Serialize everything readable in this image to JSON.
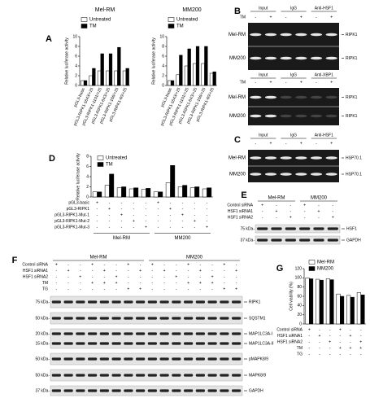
{
  "chart_data": [
    {
      "type": "bar",
      "panel": "A",
      "title": "Mel-RM",
      "ylabel": "Relative luciferase activity",
      "categories": [
        "pGL3-basic",
        "pGL3-RIPK1-1643/+25",
        "pGL3-RIPK1-1101/+25",
        "pGL3-RIPK1-643/+25",
        "pGL3-RIPK1-166/+25",
        "pGL3-RIPK1-60/+25"
      ],
      "series": [
        {
          "name": "Untreated",
          "color": "#ffffff",
          "values": [
            1,
            2,
            3,
            3,
            3,
            3
          ]
        },
        {
          "name": "TM",
          "color": "#000000",
          "values": [
            1,
            3.5,
            6.5,
            6.5,
            7.8,
            3.5
          ]
        }
      ],
      "ylim": [
        0,
        10
      ],
      "yticks": [
        0,
        2,
        4,
        6,
        8,
        10
      ]
    },
    {
      "type": "bar",
      "title": "MM200",
      "ylabel": "Relative luciferase activity",
      "categories": [
        "pGL3-basic",
        "pGL3-RIPK1-1643/+25",
        "pGL3-RIPK1-1101/+25",
        "pGL3-RIPK1-643/+25",
        "pGL3-RIPK1-166/+25",
        "pGL3-RIPK1-60/+25"
      ],
      "series": [
        {
          "name": "Untreated",
          "color": "#ffffff",
          "values": [
            1,
            2.2,
            4,
            4.5,
            4.5,
            2.5
          ]
        },
        {
          "name": "TM",
          "color": "#000000",
          "values": [
            1,
            6.2,
            7.5,
            8,
            8,
            2.8
          ]
        }
      ],
      "ylim": [
        0,
        10
      ],
      "yticks": [
        0,
        2,
        4,
        6,
        8,
        10
      ]
    },
    {
      "type": "bar",
      "panel": "D",
      "ylabel": "Relative luciferase activity",
      "categories": [
        null,
        null,
        null,
        null,
        null,
        null,
        null,
        null,
        null,
        null
      ],
      "series": [
        {
          "name": "Untreated",
          "color": "#ffffff",
          "values": [
            1,
            2.3,
            1.8,
            1.6,
            1.5,
            1,
            2.8,
            2,
            1.8,
            1.6
          ]
        },
        {
          "name": "TM",
          "color": "#000000",
          "values": [
            1,
            4.5,
            2,
            1.8,
            1.7,
            1,
            6.2,
            2.3,
            2,
            1.8
          ]
        }
      ],
      "ylim": [
        0,
        8
      ],
      "yticks": [
        0,
        2,
        4,
        6,
        8
      ],
      "groups": [
        "Mel-RM",
        "MM200"
      ],
      "conditions": [
        {
          "label": "pGL3-basic",
          "signs": [
            "+",
            "-",
            "-",
            "-",
            "-",
            "+",
            "-",
            "-",
            "-",
            "-"
          ]
        },
        {
          "label": "pGL3-RIPK1",
          "signs": [
            "-",
            "+",
            "-",
            "-",
            "-",
            "-",
            "+",
            "-",
            "-",
            "-"
          ]
        },
        {
          "label": "pGL3-RIPK1-Mut-1",
          "signs": [
            "-",
            "-",
            "+",
            "-",
            "-",
            "-",
            "-",
            "+",
            "-",
            "-"
          ]
        },
        {
          "label": "pGL3-RIPK1-Mut-2",
          "signs": [
            "-",
            "-",
            "-",
            "+",
            "-",
            "-",
            "-",
            "-",
            "+",
            "-"
          ]
        },
        {
          "label": "pGL3-RIPK1-Mut-3",
          "signs": [
            "-",
            "-",
            "-",
            "-",
            "+",
            "-",
            "-",
            "-",
            "-",
            "+"
          ]
        }
      ]
    },
    {
      "type": "bar",
      "panel": "G",
      "ylabel": "Cell viability (%)",
      "categories": [
        null,
        null,
        null,
        null,
        null,
        null
      ],
      "series": [
        {
          "name": "Mel-RM",
          "color": "#ffffff",
          "values": [
            100,
            97,
            98,
            65,
            62,
            68
          ]
        },
        {
          "name": "MM200",
          "color": "#000000",
          "values": [
            98,
            95,
            96,
            60,
            58,
            63
          ]
        }
      ],
      "ylim": [
        0,
        120
      ],
      "yticks": [
        0,
        20,
        40,
        60,
        80,
        100,
        120
      ],
      "conditions": [
        {
          "label": "Control siRNA",
          "signs": [
            "+",
            "-",
            "-",
            "+",
            "-",
            "-"
          ]
        },
        {
          "label": "HSF1 siRNA1",
          "signs": [
            "-",
            "+",
            "-",
            "-",
            "+",
            "-"
          ]
        },
        {
          "label": "HSF1 siRNA2",
          "signs": [
            "-",
            "-",
            "+",
            "-",
            "-",
            "+"
          ]
        },
        {
          "label": "TM",
          "signs": [
            "-",
            "-",
            "-",
            "+",
            "+",
            "+"
          ]
        },
        {
          "label": "TG",
          "signs": [
            "-",
            "-",
            "-",
            "-",
            "-",
            "-"
          ]
        }
      ]
    }
  ],
  "chips": [
    {
      "panel": "B",
      "columns": [
        "Input",
        "IgG",
        "Anti-HSF1"
      ],
      "treatment": "TM",
      "signs": [
        "-",
        "+",
        "-",
        "+",
        "-",
        "+"
      ],
      "rows": [
        "Mel-RM",
        "MM200"
      ],
      "band": "RIPK1"
    },
    {
      "columns": [
        "Input",
        "IgG",
        "Anti-XBP1"
      ],
      "treatment": "TM",
      "signs": [
        "-",
        "+",
        "-",
        "+",
        "-",
        "+"
      ],
      "rows": [
        "Mel-RM",
        "MM200"
      ],
      "band": "RIPK1"
    },
    {
      "panel": "C",
      "columns": [
        "Input",
        "IgG",
        "Anti-HSF1"
      ],
      "signs": [
        "-",
        "+",
        "-",
        "+",
        "-",
        "+"
      ],
      "rows": [
        "Mel-RM",
        "MM200"
      ],
      "band": "HSP70.1"
    }
  ],
  "westerns": [
    {
      "panel": "E",
      "groups": [
        "Mel-RM",
        "MM200"
      ],
      "conditions": [
        {
          "label": "Control siRNA",
          "signs": [
            "+",
            "-",
            "-",
            "+",
            "-",
            "-"
          ]
        },
        {
          "label": "HSF1 siRNA1",
          "signs": [
            "-",
            "+",
            "-",
            "-",
            "+",
            "-"
          ]
        },
        {
          "label": "HSF1 siRNA2",
          "signs": [
            "-",
            "-",
            "+",
            "-",
            "-",
            "+"
          ]
        }
      ],
      "strips": [
        {
          "markers": [
            "75 kDa-"
          ],
          "bands": [
            "HSF1"
          ]
        },
        {
          "markers": [
            "37 kDa-"
          ],
          "bands": [
            "GAPDH"
          ]
        }
      ]
    },
    {
      "panel": "F",
      "groups": [
        "Mel-RM",
        "MM200"
      ],
      "conditions": [
        {
          "label": "Control siRNA",
          "signs": [
            "+",
            "-",
            "-",
            "+",
            "-",
            "-",
            "+",
            "-",
            "+",
            "-",
            "-",
            "+",
            "-",
            "-",
            "+",
            "-"
          ]
        },
        {
          "label": "HSF1 siRNA1",
          "signs": [
            "-",
            "+",
            "-",
            "-",
            "+",
            "-",
            "-",
            "+",
            "-",
            "+",
            "-",
            "-",
            "+",
            "-",
            "-",
            "+"
          ]
        },
        {
          "label": "HSF1 siRNA2",
          "signs": [
            "-",
            "-",
            "+",
            "-",
            "-",
            "+",
            "-",
            "-",
            "-",
            "-",
            "+",
            "-",
            "-",
            "+",
            "-",
            "-"
          ]
        },
        {
          "label": "TM",
          "signs": [
            "-",
            "-",
            "-",
            "+",
            "+",
            "+",
            "-",
            "-",
            "-",
            "-",
            "-",
            "+",
            "+",
            "+",
            "-",
            "-"
          ]
        },
        {
          "label": "TG",
          "signs": [
            "-",
            "-",
            "-",
            "-",
            "-",
            "-",
            "+",
            "+",
            "-",
            "-",
            "-",
            "-",
            "-",
            "-",
            "+",
            "+"
          ]
        }
      ],
      "strips": [
        {
          "markers": [
            "75 kDa-"
          ],
          "bands": [
            "RIPK1"
          ]
        },
        {
          "markers": [
            "50 kDa-"
          ],
          "bands": [
            "SQSTM1"
          ]
        },
        {
          "markers": [
            "20 kDa-",
            "15 kDa-"
          ],
          "bands": [
            "MAP1LC3A-I",
            "MAP1LC3A-II"
          ]
        },
        {
          "markers": [
            "50 kDa-"
          ],
          "bands": [
            "pMAPK8/9"
          ]
        },
        {
          "markers": [
            "50 kDa-"
          ],
          "bands": [
            "MAPK8/9"
          ]
        },
        {
          "markers": [
            "37 kDa-"
          ],
          "bands": [
            "GAPDH"
          ]
        }
      ]
    }
  ]
}
